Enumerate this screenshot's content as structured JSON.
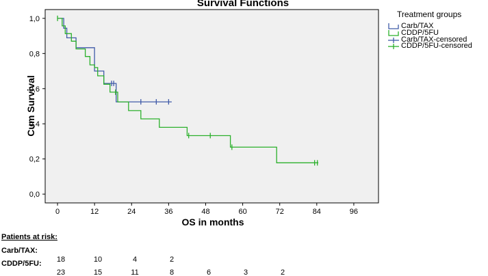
{
  "chart_data": {
    "type": "line",
    "subtype": "kaplan-meier",
    "title": "Survival Functions",
    "xlabel": "OS in months",
    "ylabel": "Cum Survival",
    "xlim": [
      -4,
      104
    ],
    "ylim": [
      -0.05,
      1.05
    ],
    "xticks": [
      0,
      12,
      24,
      36,
      48,
      60,
      72,
      84,
      96
    ],
    "yticks": [
      0.0,
      0.2,
      0.4,
      0.6,
      0.8,
      1.0
    ],
    "xtick_labels": [
      "0",
      "12",
      "24",
      "36",
      "48",
      "60",
      "72",
      "84",
      "96"
    ],
    "ytick_labels": [
      "0,0",
      "0,2",
      "0,4",
      "0,6",
      "0,8",
      "1,0"
    ],
    "legend_title": "Treatment groups",
    "legend_position": "right",
    "series": [
      {
        "name": "Carb/TAX",
        "color": "#3f5aa8",
        "steps": [
          [
            0,
            1.0
          ],
          [
            2,
            0.944
          ],
          [
            3,
            0.889
          ],
          [
            6,
            0.833
          ],
          [
            12,
            0.7
          ],
          [
            15,
            0.63
          ],
          [
            19,
            0.525
          ],
          [
            37,
            0.525
          ]
        ],
        "censored_name": "Carb/TAX-censored",
        "censored_x": [
          17.5,
          18.2,
          27,
          32,
          36
        ]
      },
      {
        "name": "CDDP/5FU",
        "color": "#2bb02b",
        "steps": [
          [
            0,
            1.0
          ],
          [
            1.5,
            0.957
          ],
          [
            2.5,
            0.913
          ],
          [
            4.5,
            0.87
          ],
          [
            6,
            0.826
          ],
          [
            9,
            0.783
          ],
          [
            10.5,
            0.735
          ],
          [
            12,
            0.72
          ],
          [
            13,
            0.673
          ],
          [
            15,
            0.625
          ],
          [
            17,
            0.58
          ],
          [
            19.5,
            0.525
          ],
          [
            23,
            0.475
          ],
          [
            27,
            0.428
          ],
          [
            33,
            0.38
          ],
          [
            42,
            0.333
          ],
          [
            56,
            0.267
          ],
          [
            71,
            0.178
          ],
          [
            84.5,
            0.178
          ]
        ],
        "censored_name": "CDDP/5FU-censored",
        "censored_x": [
          0,
          18.8,
          42.5,
          49.5,
          56.5,
          83.3,
          84.2
        ]
      }
    ]
  },
  "risk_table": {
    "heading": "Patients at risk:",
    "rows": [
      {
        "label": "Carb/TAX:",
        "values": [
          "18",
          "10",
          "4",
          "2"
        ]
      },
      {
        "label": "CDDP/5FU:",
        "values": [
          "23",
          "15",
          "11",
          "8",
          "6",
          "3",
          "2"
        ]
      }
    ]
  }
}
